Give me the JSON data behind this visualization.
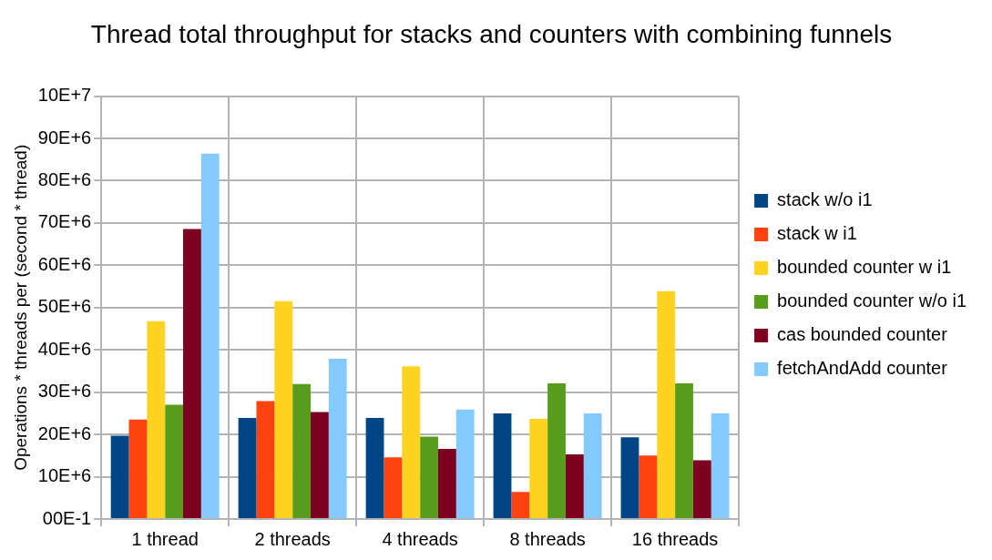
{
  "chart_data": {
    "type": "bar",
    "title": "Thread total throughput for stacks and counters with combining funnels",
    "ylabel": "Operations * threads per (second * thread)",
    "categories": [
      "1 thread",
      "2 threads",
      "4 threads",
      "8 threads",
      "16 threads"
    ],
    "series": [
      {
        "name": "stack w/o i1",
        "color": "#004586",
        "values": [
          19700000,
          23900000,
          23900000,
          25000000,
          19300000
        ]
      },
      {
        "name": "stack w i1",
        "color": "#ff420e",
        "values": [
          23500000,
          27900000,
          14600000,
          6400000,
          15000000
        ]
      },
      {
        "name": "bounded counter w i1",
        "color": "#ffd320",
        "values": [
          46800000,
          51500000,
          36100000,
          23700000,
          53900000
        ]
      },
      {
        "name": "bounded counter w/o i1",
        "color": "#579d1c",
        "values": [
          27000000,
          31900000,
          19500000,
          32100000,
          32100000
        ]
      },
      {
        "name": "cas bounded counter",
        "color": "#7e0021",
        "values": [
          68600000,
          25300000,
          16600000,
          15300000,
          13900000
        ]
      },
      {
        "name": "fetchAndAdd counter",
        "color": "#83caff",
        "values": [
          86400000,
          37900000,
          25900000,
          25000000,
          25000000
        ]
      }
    ],
    "ylim": [
      0,
      100000000
    ],
    "yticks": [
      {
        "value": 0,
        "label": "00E-1"
      },
      {
        "value": 10000000,
        "label": "10E+6"
      },
      {
        "value": 20000000,
        "label": "20E+6"
      },
      {
        "value": 30000000,
        "label": "30E+6"
      },
      {
        "value": 40000000,
        "label": "40E+6"
      },
      {
        "value": 50000000,
        "label": "50E+6"
      },
      {
        "value": 60000000,
        "label": "60E+6"
      },
      {
        "value": 70000000,
        "label": "70E+6"
      },
      {
        "value": 80000000,
        "label": "80E+6"
      },
      {
        "value": 90000000,
        "label": "90E+6"
      },
      {
        "value": 100000000,
        "label": "10E+7"
      }
    ],
    "grid": true,
    "legend": "right"
  }
}
